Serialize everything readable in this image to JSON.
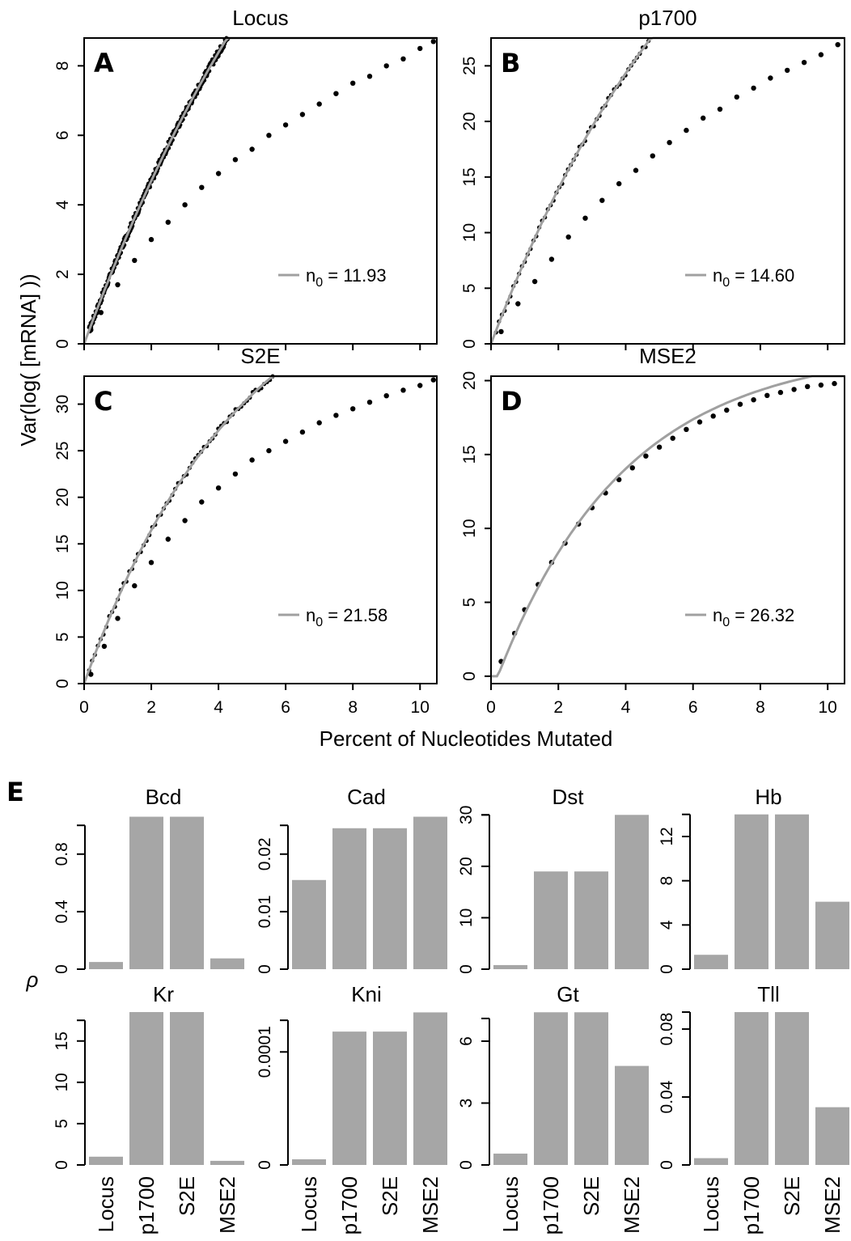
{
  "figure": {
    "ylabel_top": "Var(log( [mRNA] ))",
    "xlabel_top": "Percent of Nucleotides Mutated",
    "panel_e_letter": "E",
    "ylabel_bottom": "ρ",
    "colors": {
      "fit": "#a0a0a0",
      "points": "#000000",
      "bars": "#a6a6a6",
      "frame": "#000000"
    }
  },
  "chart_data": [
    {
      "type": "scatter",
      "letter": "A",
      "title": "Locus",
      "xlim": [
        0,
        10.5
      ],
      "ylim": [
        0,
        8.8
      ],
      "xticks": [
        0,
        2,
        4,
        6,
        8,
        10
      ],
      "yticks": [
        0,
        2,
        4,
        6,
        8
      ],
      "fit_label": "n0 = 11.93",
      "fit_label_main": "n",
      "fit_label_sub": "0",
      "fit_label_value": " = 11.93",
      "fit_amplitude": 22.1,
      "fit_scale": 0.1193,
      "point_density": "dense",
      "x": [
        0.2,
        0.5,
        1,
        1.5,
        2,
        2.5,
        3,
        3.5,
        4,
        4.5,
        5,
        5.5,
        6,
        6.5,
        7,
        7.5,
        8,
        8.5,
        9,
        9.5,
        10,
        10.4
      ],
      "y": [
        0.4,
        0.9,
        1.7,
        2.4,
        3.0,
        3.5,
        4.0,
        4.5,
        4.9,
        5.3,
        5.6,
        6.0,
        6.3,
        6.6,
        6.9,
        7.2,
        7.5,
        7.7,
        8.0,
        8.2,
        8.5,
        8.7
      ]
    },
    {
      "type": "scatter",
      "letter": "B",
      "title": "p1700",
      "xlim": [
        0,
        10.5
      ],
      "ylim": [
        0,
        27.5
      ],
      "xticks": [
        0,
        2,
        4,
        6,
        8,
        10
      ],
      "yticks": [
        0,
        5,
        10,
        15,
        20,
        25
      ],
      "fit_label": "n0 = 14.60",
      "fit_label_main": "n",
      "fit_label_sub": "0",
      "fit_label_value": " = 14.60",
      "fit_amplitude": 55.0,
      "fit_scale": 0.146,
      "point_density": "medium",
      "x": [
        0.3,
        0.8,
        1.3,
        1.8,
        2.3,
        2.8,
        3.3,
        3.8,
        4.3,
        4.8,
        5.3,
        5.8,
        6.3,
        6.8,
        7.3,
        7.8,
        8.3,
        8.8,
        9.3,
        9.8,
        10.3
      ],
      "y": [
        1.1,
        3.6,
        5.6,
        7.6,
        9.6,
        11.3,
        12.9,
        14.4,
        15.6,
        16.9,
        18.1,
        19.2,
        20.3,
        21.1,
        22.2,
        23.0,
        23.9,
        24.6,
        25.3,
        26.0,
        26.9
      ]
    },
    {
      "type": "scatter",
      "letter": "C",
      "title": "S2E",
      "xlim": [
        0,
        10.5
      ],
      "ylim": [
        0,
        33
      ],
      "xticks": [
        0,
        2,
        4,
        6,
        8,
        10
      ],
      "yticks": [
        0,
        5,
        10,
        15,
        20,
        25,
        30
      ],
      "fit_label": "n0 = 21.58",
      "fit_label_main": "n",
      "fit_label_sub": "0",
      "fit_label_value": " = 21.58",
      "fit_amplitude": 47.0,
      "fit_scale": 0.2158,
      "point_density": "medium",
      "x": [
        0.2,
        0.6,
        1.0,
        1.5,
        2.0,
        2.5,
        3.0,
        3.5,
        4.0,
        4.5,
        5.0,
        5.5,
        6.0,
        6.5,
        7.0,
        7.5,
        8.0,
        8.5,
        9.0,
        9.5,
        10.0,
        10.4
      ],
      "y": [
        1.0,
        4.0,
        7.0,
        10.5,
        13.0,
        15.5,
        17.5,
        19.5,
        21.0,
        22.5,
        24.0,
        25.0,
        26.0,
        27.0,
        28.0,
        28.8,
        29.5,
        30.2,
        30.9,
        31.5,
        32.0,
        32.6
      ]
    },
    {
      "type": "scatter",
      "letter": "D",
      "title": "MSE2",
      "xlim": [
        0,
        10.5
      ],
      "ylim": [
        -0.5,
        20.3
      ],
      "xticks": [
        0,
        2,
        4,
        6,
        8,
        10
      ],
      "yticks": [
        0,
        5,
        10,
        15,
        20
      ],
      "fit_label": "n0 = 26.32",
      "fit_label_main": "n",
      "fit_label_sub": "0",
      "fit_label_value": " = 26.32",
      "fit_amplitude": 22.2,
      "fit_scale": 0.2632,
      "fit_x0": 0.2,
      "point_density": "sparse",
      "x": [
        0.3,
        0.7,
        1.0,
        1.4,
        1.8,
        2.2,
        2.6,
        3.0,
        3.4,
        3.8,
        4.2,
        4.6,
        5.0,
        5.4,
        5.8,
        6.2,
        6.6,
        7.0,
        7.4,
        7.8,
        8.2,
        8.6,
        9.0,
        9.4,
        9.8,
        10.2
      ],
      "y": [
        1.0,
        2.9,
        4.5,
        6.2,
        7.7,
        9.0,
        10.3,
        11.4,
        12.4,
        13.3,
        14.1,
        14.9,
        15.5,
        16.1,
        16.7,
        17.2,
        17.6,
        18.0,
        18.4,
        18.7,
        19.0,
        19.2,
        19.4,
        19.6,
        19.7,
        19.8
      ]
    },
    {
      "type": "bar",
      "title": "Bcd",
      "categories": [
        "Locus",
        "p1700",
        "S2E",
        "MSE2"
      ],
      "values": [
        0.05,
        1.06,
        1.06,
        0.075
      ],
      "ylim": [
        0,
        1.08
      ],
      "yticks": [
        "0",
        "0.4",
        "0.8"
      ],
      "ytick_values": [
        0,
        0.4,
        0.8
      ],
      "axis_top": 1.0
    },
    {
      "type": "bar",
      "title": "Cad",
      "categories": [
        "Locus",
        "p1700",
        "S2E",
        "MSE2"
      ],
      "values": [
        0.0155,
        0.0245,
        0.0245,
        0.0265
      ],
      "ylim": [
        0,
        0.027
      ],
      "yticks": [
        "0",
        "0.01",
        "0.02"
      ],
      "ytick_values": [
        0,
        0.01,
        0.02
      ],
      "axis_top": 0.025
    },
    {
      "type": "bar",
      "title": "Dst",
      "categories": [
        "Locus",
        "p1700",
        "S2E",
        "MSE2"
      ],
      "values": [
        0.8,
        19,
        19,
        30
      ],
      "ylim": [
        0,
        30.2
      ],
      "yticks": [
        "0",
        "10",
        "20",
        "30"
      ],
      "ytick_values": [
        0,
        10,
        20,
        30
      ],
      "axis_top": 30
    },
    {
      "type": "bar",
      "title": "Hb",
      "categories": [
        "Locus",
        "p1700",
        "S2E",
        "MSE2"
      ],
      "values": [
        1.3,
        14,
        14,
        6.1
      ],
      "ylim": [
        0,
        14.05
      ],
      "yticks": [
        "0",
        "4",
        "8",
        "12"
      ],
      "ytick_values": [
        0,
        4,
        8,
        12
      ],
      "axis_top": 14
    },
    {
      "type": "bar",
      "title": "Kr",
      "categories": [
        "Locus",
        "p1700",
        "S2E",
        "MSE2"
      ],
      "values": [
        1.0,
        18.5,
        18.5,
        0.5
      ],
      "ylim": [
        0,
        18.6
      ],
      "yticks": [
        "0",
        "5",
        "10",
        "15"
      ],
      "ytick_values": [
        0,
        5,
        10,
        15
      ],
      "axis_top": 17.5
    },
    {
      "type": "bar",
      "title": "Kni",
      "categories": [
        "Locus",
        "p1700",
        "S2E",
        "MSE2"
      ],
      "values": [
        5e-06,
        0.000118,
        0.000118,
        0.000135
      ],
      "ylim": [
        0,
        0.000136
      ],
      "yticks": [
        "0",
        "0.0001"
      ],
      "ytick_values": [
        0,
        0.0001
      ],
      "axis_top": 0.000128
    },
    {
      "type": "bar",
      "title": "Gt",
      "categories": [
        "Locus",
        "p1700",
        "S2E",
        "MSE2"
      ],
      "values": [
        0.55,
        7.4,
        7.4,
        4.8
      ],
      "ylim": [
        0,
        7.45
      ],
      "yticks": [
        "0",
        "3",
        "6"
      ],
      "ytick_values": [
        0,
        3,
        6
      ],
      "axis_top": 7.1
    },
    {
      "type": "bar",
      "title": "Tll",
      "categories": [
        "Locus",
        "p1700",
        "S2E",
        "MSE2"
      ],
      "values": [
        0.004,
        0.09,
        0.09,
        0.034
      ],
      "ylim": [
        0,
        0.0905
      ],
      "yticks": [
        "0",
        "0.04",
        "0.08"
      ],
      "ytick_values": [
        0,
        0.04,
        0.08
      ],
      "axis_top": 0.09
    }
  ]
}
